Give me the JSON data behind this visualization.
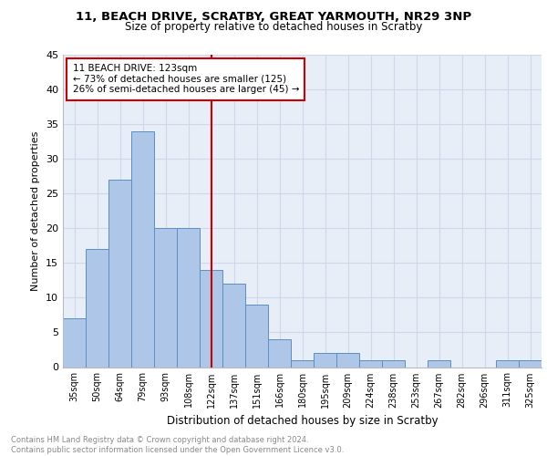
{
  "title1": "11, BEACH DRIVE, SCRATBY, GREAT YARMOUTH, NR29 3NP",
  "title2": "Size of property relative to detached houses in Scratby",
  "xlabel": "Distribution of detached houses by size in Scratby",
  "ylabel": "Number of detached properties",
  "categories": [
    "35sqm",
    "50sqm",
    "64sqm",
    "79sqm",
    "93sqm",
    "108sqm",
    "122sqm",
    "137sqm",
    "151sqm",
    "166sqm",
    "180sqm",
    "195sqm",
    "209sqm",
    "224sqm",
    "238sqm",
    "253sqm",
    "267sqm",
    "282sqm",
    "296sqm",
    "311sqm",
    "325sqm"
  ],
  "values": [
    7,
    17,
    27,
    34,
    20,
    20,
    14,
    12,
    9,
    4,
    1,
    2,
    2,
    1,
    1,
    0,
    1,
    0,
    0,
    1,
    1
  ],
  "bar_color": "#aec6e8",
  "bar_edge_color": "#5a8fc2",
  "vline_index": 6,
  "vline_color": "#cc0000",
  "annotation_text": "11 BEACH DRIVE: 123sqm\n← 73% of detached houses are smaller (125)\n26% of semi-detached houses are larger (45) →",
  "annotation_box_color": "#ffffff",
  "annotation_box_edge": "#cc0000",
  "ylim": [
    0,
    45
  ],
  "yticks": [
    0,
    5,
    10,
    15,
    20,
    25,
    30,
    35,
    40,
    45
  ],
  "grid_color": "#d0d8e8",
  "footer_text": "Contains HM Land Registry data © Crown copyright and database right 2024.\nContains public sector information licensed under the Open Government Licence v3.0.",
  "bg_color": "#e8eef8"
}
